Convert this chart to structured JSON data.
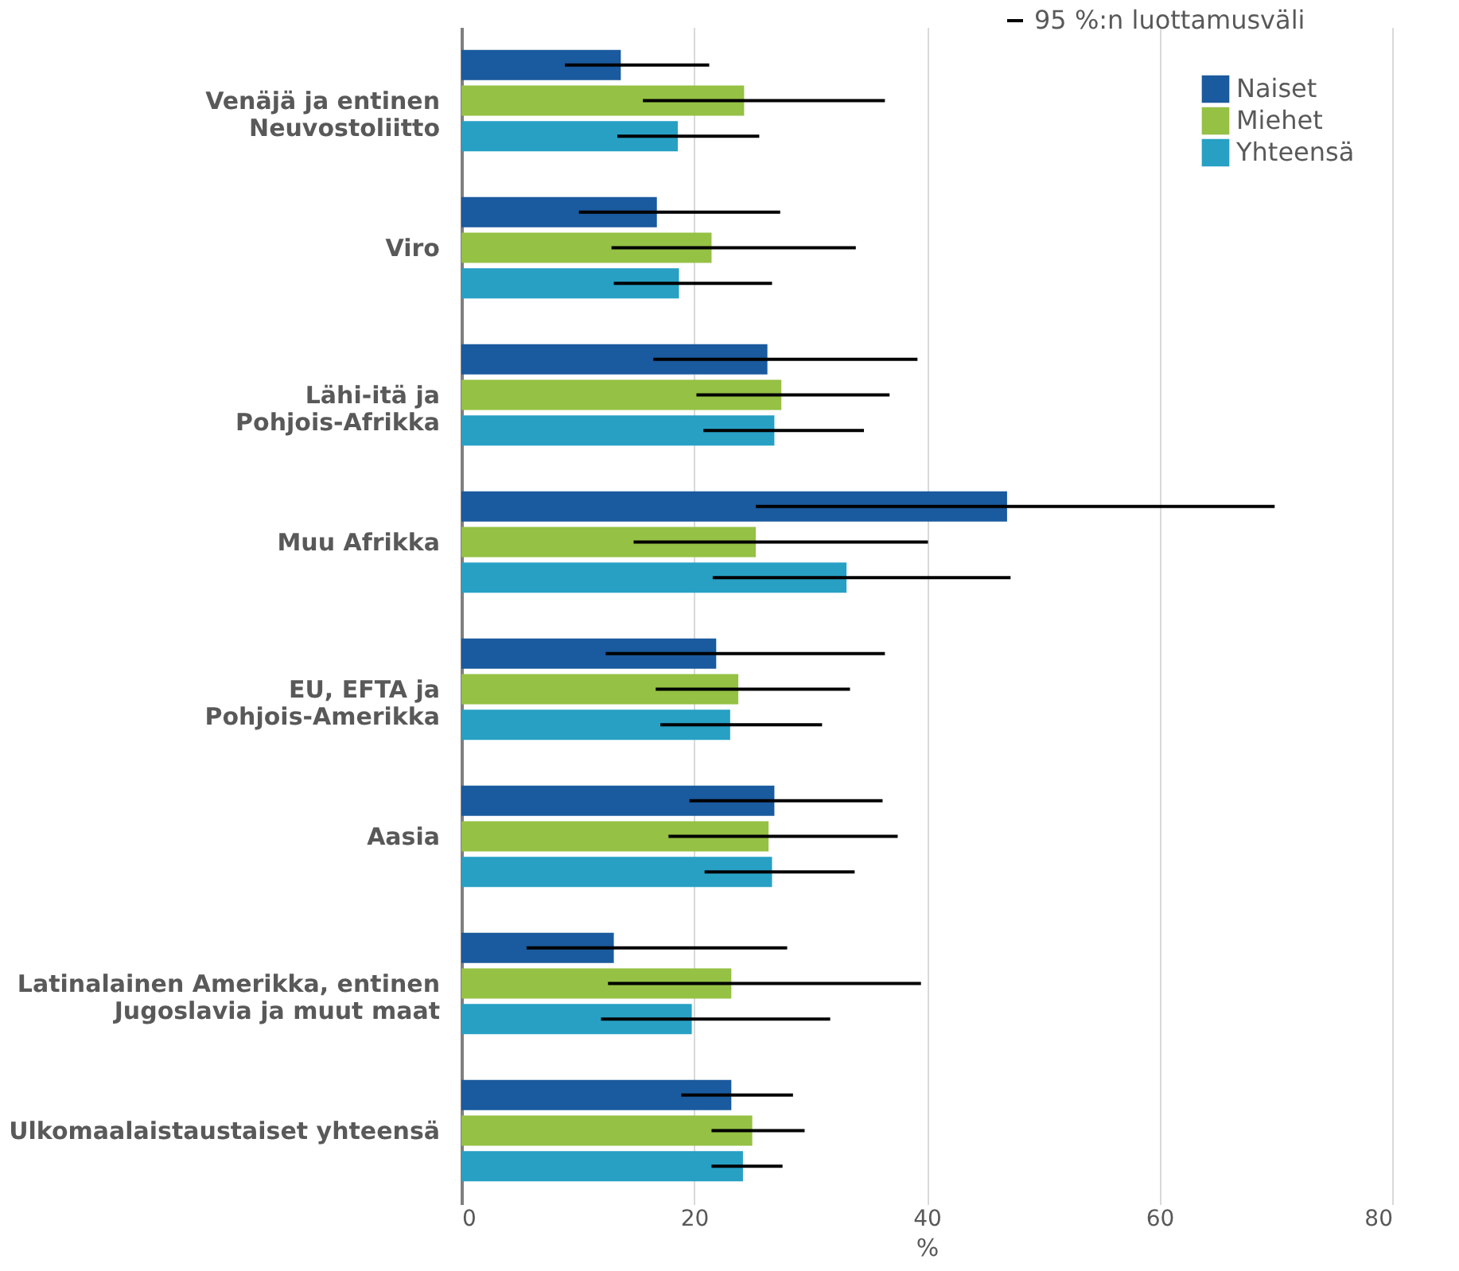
{
  "chart_data": {
    "type": "bar",
    "orientation": "horizontal",
    "xlabel": "%",
    "categories": [
      "Venäjä ja entinen\nNeuvostoliitto",
      "Viro",
      "Lähi-itä ja\nPohjois-Afrikka",
      "Muu Afrikka",
      "EU, EFTA ja\nPohjois-Amerikka",
      "Aasia",
      "Latinalainen Amerikka, entinen\nJugoslavia ja muut maat",
      "Ulkomaalaistaustaiset yhteensä"
    ],
    "series": [
      {
        "name": "Naiset",
        "color": "#1a5a9e",
        "values": [
          13.7,
          16.8,
          26.3,
          46.9,
          21.9,
          26.9,
          13.1,
          23.2
        ],
        "errors": [
          [
            8.9,
            21.3
          ],
          [
            10.1,
            27.4
          ],
          [
            16.5,
            39.2
          ],
          [
            25.3,
            69.9
          ],
          [
            12.4,
            36.4
          ],
          [
            19.6,
            36.2
          ],
          [
            5.6,
            28.0
          ],
          [
            18.9,
            28.5
          ]
        ]
      },
      {
        "name": "Miehet",
        "color": "#95c144",
        "values": [
          24.3,
          21.5,
          27.5,
          25.3,
          23.8,
          26.4,
          23.2,
          25.0
        ],
        "errors": [
          [
            15.6,
            36.4
          ],
          [
            12.9,
            33.9
          ],
          [
            20.2,
            36.8
          ],
          [
            14.8,
            40.1
          ],
          [
            16.7,
            33.4
          ],
          [
            17.8,
            37.5
          ],
          [
            12.6,
            39.5
          ],
          [
            21.5,
            29.5
          ]
        ]
      },
      {
        "name": "Yhteensä",
        "color": "#27a0c4",
        "values": [
          18.6,
          18.7,
          26.9,
          33.1,
          23.1,
          26.7,
          19.8,
          24.2
        ],
        "errors": [
          [
            13.4,
            25.6
          ],
          [
            13.1,
            26.7
          ],
          [
            20.8,
            34.6
          ],
          [
            21.6,
            47.2
          ],
          [
            17.1,
            31.0
          ],
          [
            20.9,
            33.8
          ],
          [
            12.0,
            31.7
          ],
          [
            21.5,
            27.6
          ]
        ]
      }
    ],
    "annotations": [
      "95 %:n luottamusväli"
    ],
    "xlim": [
      0,
      80
    ],
    "xticks": [
      0,
      20,
      40,
      60,
      80
    ],
    "grid": "x",
    "legend": "top right"
  }
}
